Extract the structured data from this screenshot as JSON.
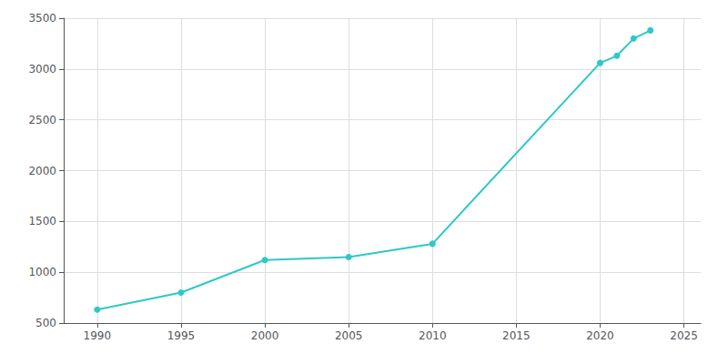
{
  "chart_data": {
    "type": "line",
    "x": [
      1990,
      1995,
      2000,
      2005,
      2010,
      2020,
      2021,
      2022,
      2023
    ],
    "values": [
      632,
      800,
      1120,
      1150,
      1280,
      3060,
      3130,
      3300,
      3380
    ],
    "color": "#2ec8c8",
    "marker": "circle",
    "xlim": [
      1988,
      2026
    ],
    "ylim": [
      500,
      3500
    ],
    "xticks": [
      1990,
      1995,
      2000,
      2005,
      2010,
      2015,
      2020,
      2025
    ],
    "yticks": [
      500,
      1000,
      1500,
      2000,
      2500,
      3000,
      3500
    ],
    "grid": true
  }
}
